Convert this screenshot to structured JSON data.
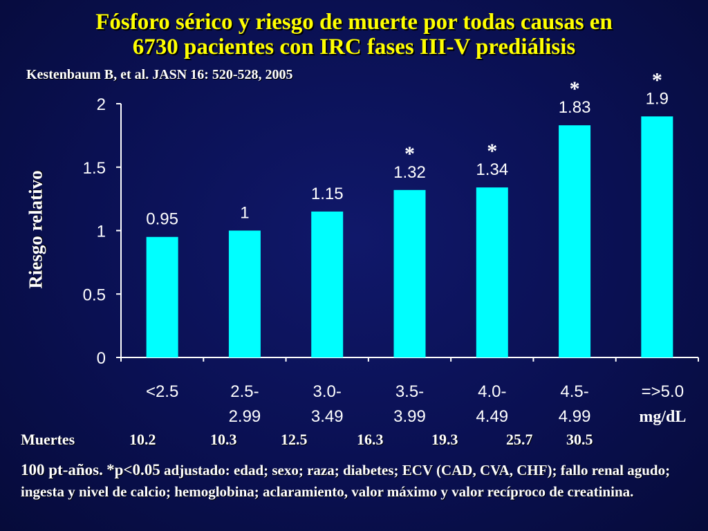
{
  "title_line1": "Fósforo sérico y riesgo de muerte por todas causas en",
  "title_line2": "6730 pacientes con IRC fases III-V prediálisis",
  "citation": "Kestenbaum B, et al. JASN 16: 520-528, 2005",
  "colors": {
    "background": "#0a1052",
    "bar": "#00ffff",
    "title": "#ffff00",
    "text": "#ffffff"
  },
  "chart_data": {
    "type": "bar",
    "ylabel": "Riesgo relativo",
    "ylim": [
      0,
      2
    ],
    "yticks": [
      "0",
      "0.5",
      "1",
      "1.5",
      "2"
    ],
    "categories": [
      [
        "<2.5"
      ],
      [
        "2.5-",
        "2.99"
      ],
      [
        "3.0-",
        "3.49"
      ],
      [
        "3.5-",
        "3.99"
      ],
      [
        "4.0-",
        "4.49"
      ],
      [
        "4.5-",
        "4.99"
      ],
      [
        "=>5.0",
        "mg/dL"
      ]
    ],
    "values": [
      0.95,
      1,
      1.15,
      1.32,
      1.34,
      1.83,
      1.9
    ],
    "value_labels": [
      "0.95",
      "1",
      "1.15",
      "1.32",
      "1.34",
      "1.83",
      "1.9"
    ],
    "significant": [
      false,
      false,
      false,
      true,
      true,
      true,
      true
    ],
    "significance_marker": "*",
    "grid": false
  },
  "deaths": {
    "label": "Muertes",
    "values": [
      "10.2",
      "10.3",
      "12.5",
      "16.3",
      "19.3",
      "25.7",
      "30.5"
    ]
  },
  "footnote": {
    "units": "100 pt-años.",
    "pvalue": "*p<0.05",
    "text": "adjustado: edad; sexo; raza; diabetes; ECV (CAD, CVA, CHF); fallo renal agudo; ingesta y nivel de calcio; hemoglobina; aclaramiento, valor máximo y valor recíproco de creatinina."
  }
}
